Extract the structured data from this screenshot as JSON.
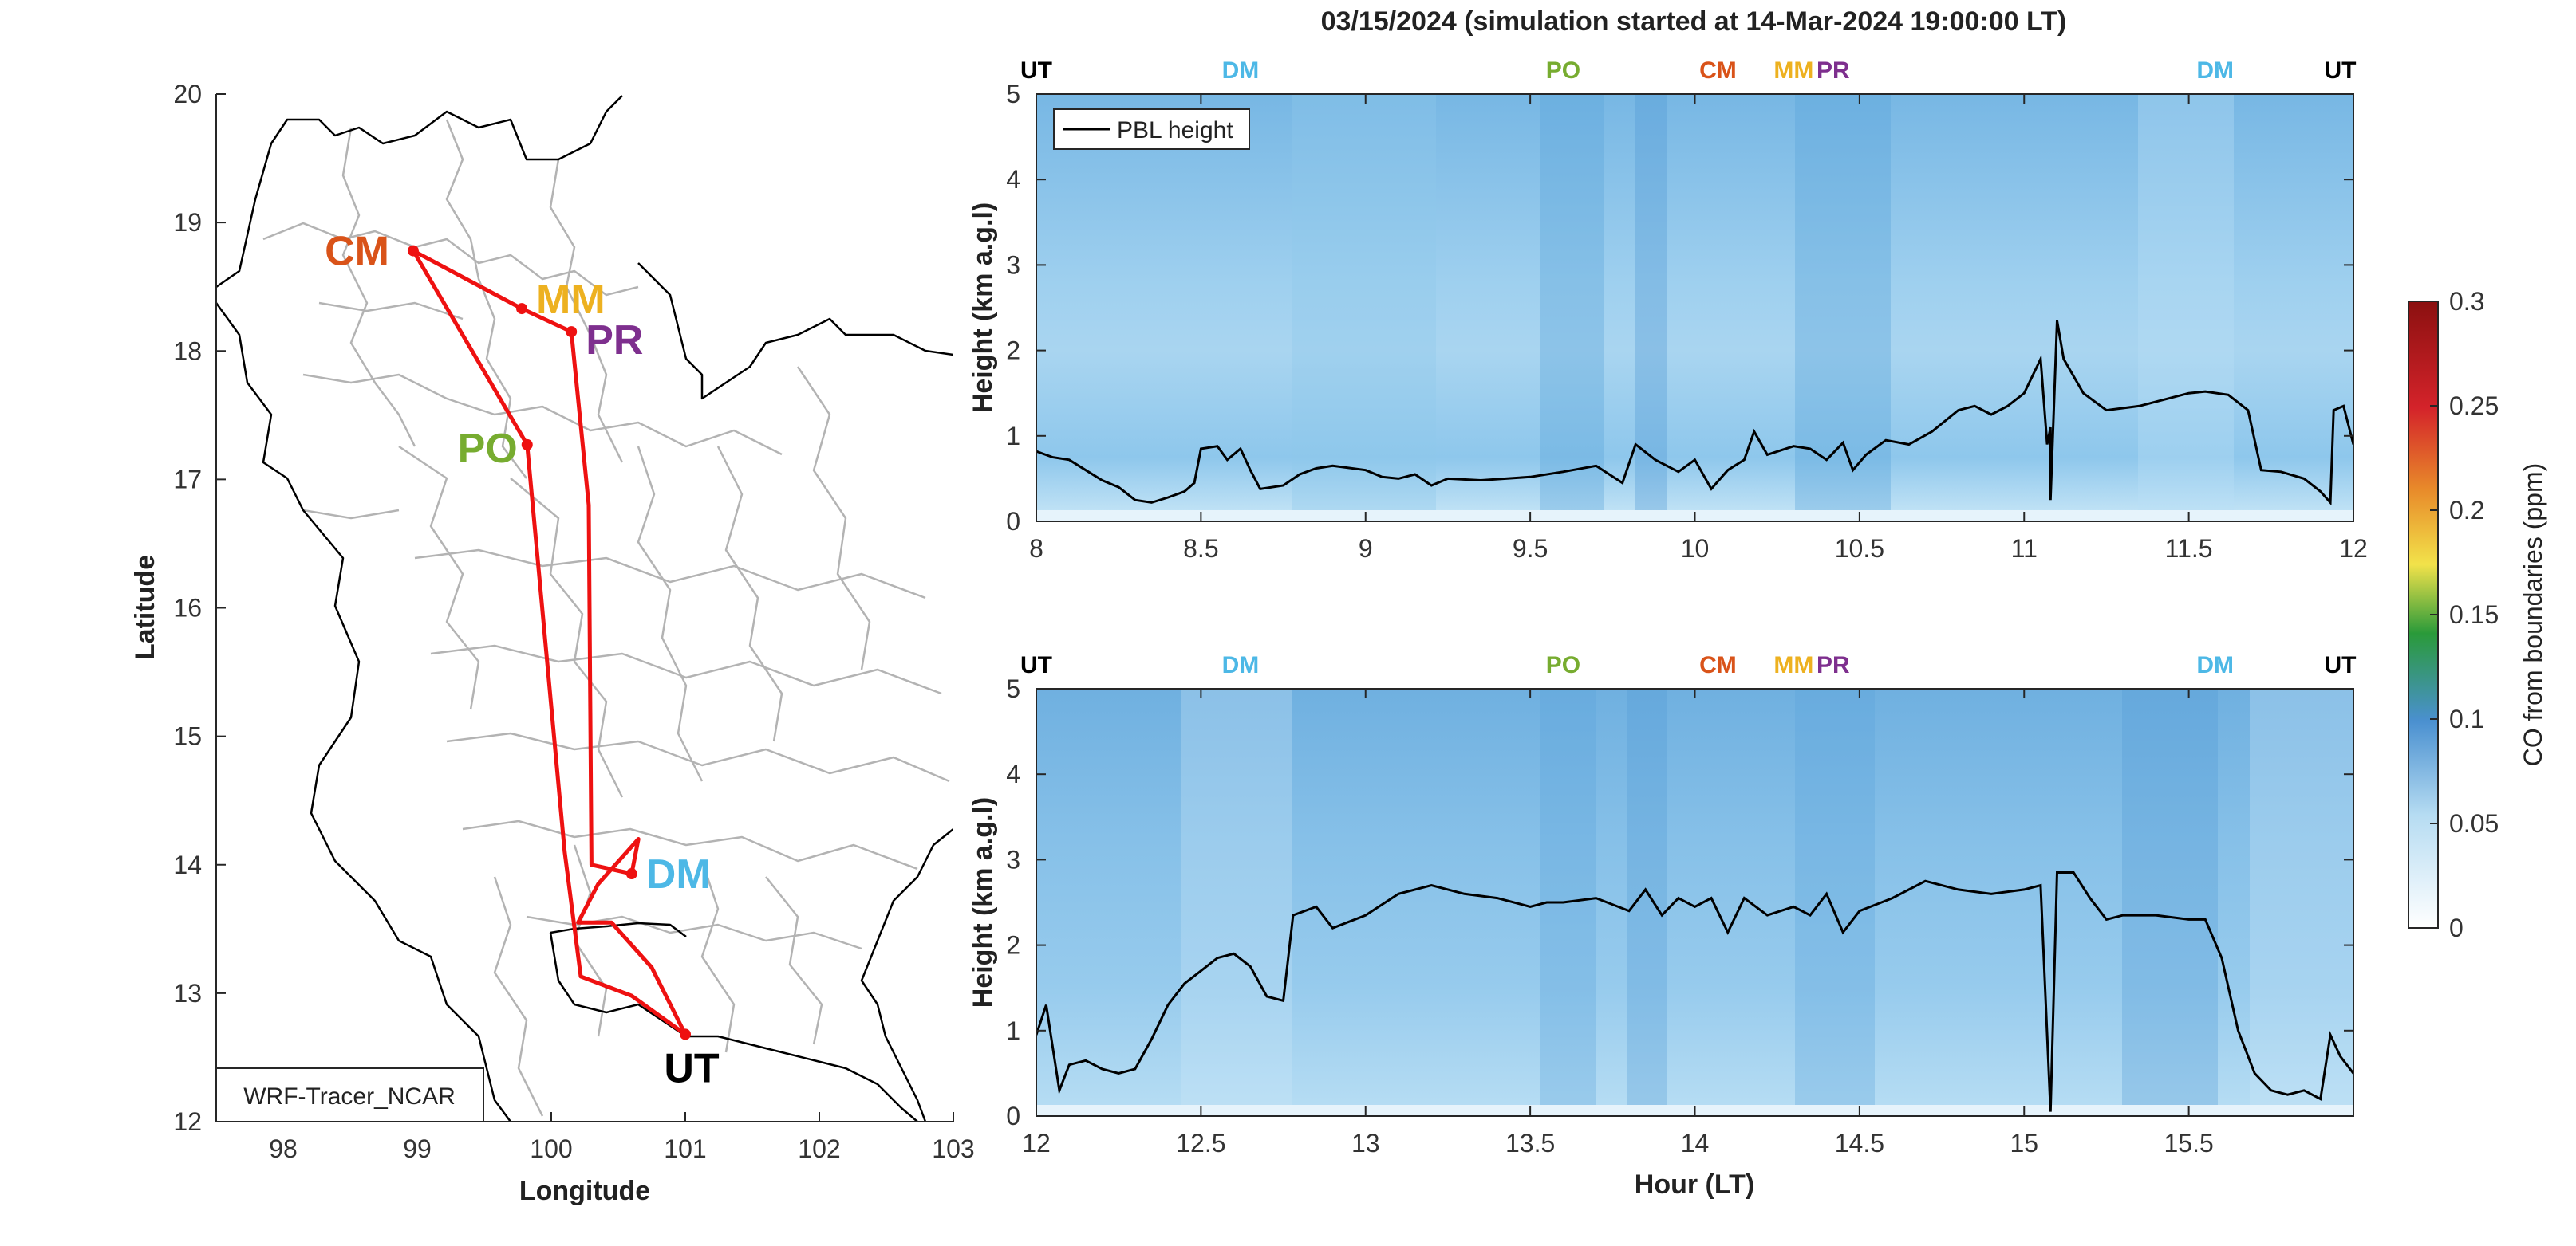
{
  "title": "03/15/2024 (simulation started at 14-Mar-2024 19:00:00 LT)",
  "colors": {
    "route": "#ee1111",
    "UT": "#000000",
    "DM": "#4db8e6",
    "PO": "#77ac30",
    "CM": "#d95319",
    "MM": "#edb120",
    "PR": "#7e2f8e",
    "boundary": "#b3b3b3",
    "field_low": "#c7e6f7",
    "field_high": "#6eafe0",
    "pbl": "#000000"
  },
  "chart_data": [
    {
      "type": "map",
      "xlabel": "Longitude",
      "ylabel": "Latitude",
      "xlim": [
        97.5,
        103
      ],
      "ylim": [
        12,
        20
      ],
      "xticks": [
        98,
        99,
        100,
        101,
        102,
        103
      ],
      "yticks": [
        12,
        13,
        14,
        15,
        16,
        17,
        18,
        19,
        20
      ],
      "annotation": "WRF-Tracer_NCAR",
      "stations": [
        {
          "name": "CM",
          "lon": 98.97,
          "lat": 18.78
        },
        {
          "name": "MM",
          "lon": 99.78,
          "lat": 18.33
        },
        {
          "name": "PR",
          "lon": 100.15,
          "lat": 18.15
        },
        {
          "name": "PO",
          "lon": 99.82,
          "lat": 17.27
        },
        {
          "name": "DM",
          "lon": 100.6,
          "lat": 13.93
        },
        {
          "name": "UT",
          "lon": 101.0,
          "lat": 12.68
        }
      ],
      "route": [
        [
          101.0,
          12.68
        ],
        [
          100.6,
          12.98
        ],
        [
          100.22,
          13.13
        ],
        [
          100.1,
          14.1
        ],
        [
          99.82,
          17.27
        ],
        [
          98.97,
          18.78
        ],
        [
          99.78,
          18.33
        ],
        [
          100.15,
          18.15
        ],
        [
          100.28,
          16.8
        ],
        [
          100.3,
          14.0
        ],
        [
          100.6,
          13.93
        ],
        [
          100.65,
          14.2
        ],
        [
          100.35,
          13.85
        ],
        [
          100.2,
          13.55
        ],
        [
          100.45,
          13.55
        ],
        [
          100.75,
          13.2
        ],
        [
          101.0,
          12.68
        ]
      ]
    },
    {
      "type": "heatmap",
      "series_name": "PBL height",
      "legend": "PBL height",
      "legend_position": "top-left",
      "ylabel": "Height (km a.g.l)",
      "xlabel": "",
      "xlim": [
        8,
        12
      ],
      "ylim": [
        0,
        5
      ],
      "xticks": [
        "8",
        "8.5",
        "9",
        "9.5",
        "10",
        "10.5",
        "11",
        "11.5",
        "12"
      ],
      "yticks": [
        "0",
        "1",
        "2",
        "3",
        "4",
        "5"
      ],
      "top_markers": [
        {
          "label": "UT",
          "x": 8.0,
          "color": "UT"
        },
        {
          "label": "DM",
          "x": 8.62,
          "color": "DM"
        },
        {
          "label": "PO",
          "x": 9.6,
          "color": "PO"
        },
        {
          "label": "CM",
          "x": 10.07,
          "color": "CM"
        },
        {
          "label": "MM",
          "x": 10.3,
          "color": "MM"
        },
        {
          "label": "PR",
          "x": 10.42,
          "color": "PR"
        },
        {
          "label": "DM",
          "x": 11.58,
          "color": "DM"
        },
        {
          "label": "UT",
          "x": 11.96,
          "color": "UT"
        }
      ],
      "pbl_points": [
        [
          8.0,
          0.82
        ],
        [
          8.05,
          0.75
        ],
        [
          8.1,
          0.72
        ],
        [
          8.15,
          0.6
        ],
        [
          8.2,
          0.48
        ],
        [
          8.25,
          0.4
        ],
        [
          8.3,
          0.25
        ],
        [
          8.35,
          0.22
        ],
        [
          8.4,
          0.28
        ],
        [
          8.45,
          0.35
        ],
        [
          8.48,
          0.45
        ],
        [
          8.5,
          0.85
        ],
        [
          8.55,
          0.88
        ],
        [
          8.58,
          0.72
        ],
        [
          8.62,
          0.85
        ],
        [
          8.65,
          0.6
        ],
        [
          8.68,
          0.38
        ],
        [
          8.75,
          0.42
        ],
        [
          8.8,
          0.55
        ],
        [
          8.85,
          0.62
        ],
        [
          8.9,
          0.65
        ],
        [
          9.0,
          0.6
        ],
        [
          9.05,
          0.52
        ],
        [
          9.1,
          0.5
        ],
        [
          9.15,
          0.55
        ],
        [
          9.2,
          0.42
        ],
        [
          9.25,
          0.5
        ],
        [
          9.35,
          0.48
        ],
        [
          9.5,
          0.52
        ],
        [
          9.6,
          0.58
        ],
        [
          9.7,
          0.65
        ],
        [
          9.78,
          0.45
        ],
        [
          9.82,
          0.9
        ],
        [
          9.88,
          0.72
        ],
        [
          9.95,
          0.58
        ],
        [
          10.0,
          0.72
        ],
        [
          10.05,
          0.38
        ],
        [
          10.1,
          0.6
        ],
        [
          10.15,
          0.72
        ],
        [
          10.18,
          1.05
        ],
        [
          10.22,
          0.78
        ],
        [
          10.3,
          0.88
        ],
        [
          10.35,
          0.85
        ],
        [
          10.4,
          0.72
        ],
        [
          10.45,
          0.92
        ],
        [
          10.48,
          0.6
        ],
        [
          10.52,
          0.78
        ],
        [
          10.58,
          0.95
        ],
        [
          10.65,
          0.9
        ],
        [
          10.72,
          1.05
        ],
        [
          10.8,
          1.3
        ],
        [
          10.85,
          1.35
        ],
        [
          10.9,
          1.25
        ],
        [
          10.95,
          1.35
        ],
        [
          11.0,
          1.5
        ],
        [
          11.05,
          1.9
        ],
        [
          11.07,
          0.9
        ],
        [
          11.08,
          1.1
        ],
        [
          11.1,
          2.35
        ],
        [
          11.12,
          1.9
        ],
        [
          11.18,
          1.5
        ],
        [
          11.25,
          1.3
        ],
        [
          11.35,
          1.35
        ],
        [
          11.45,
          1.45
        ],
        [
          11.5,
          1.5
        ],
        [
          11.55,
          1.52
        ],
        [
          11.62,
          1.48
        ],
        [
          11.68,
          1.3
        ],
        [
          11.72,
          0.6
        ],
        [
          11.78,
          0.58
        ],
        [
          11.85,
          0.5
        ],
        [
          11.9,
          0.35
        ],
        [
          11.94,
          1.3
        ],
        [
          11.97,
          1.35
        ],
        [
          12.0,
          0.9
        ]
      ],
      "pbl_dips": [
        [
          11.08,
          0.25
        ],
        [
          11.93,
          0.22
        ]
      ]
    },
    {
      "type": "heatmap",
      "series_name": "PBL height",
      "ylabel": "Height (km a.g.l)",
      "xlabel": "Hour (LT)",
      "xlim": [
        12,
        16
      ],
      "ylim": [
        0,
        5
      ],
      "xticks": [
        "12",
        "12.5",
        "13",
        "13.5",
        "14",
        "14.5",
        "15",
        "15.5"
      ],
      "yticks": [
        "0",
        "1",
        "2",
        "3",
        "4",
        "5"
      ],
      "top_markers": [
        {
          "label": "UT",
          "x": 12.0,
          "color": "UT"
        },
        {
          "label": "DM",
          "x": 12.62,
          "color": "DM"
        },
        {
          "label": "PO",
          "x": 13.6,
          "color": "PO"
        },
        {
          "label": "CM",
          "x": 14.07,
          "color": "CM"
        },
        {
          "label": "MM",
          "x": 14.3,
          "color": "MM"
        },
        {
          "label": "PR",
          "x": 14.42,
          "color": "PR"
        },
        {
          "label": "DM",
          "x": 15.58,
          "color": "DM"
        },
        {
          "label": "UT",
          "x": 15.96,
          "color": "UT"
        }
      ],
      "pbl_points": [
        [
          12.0,
          0.95
        ],
        [
          12.03,
          1.3
        ],
        [
          12.07,
          0.3
        ],
        [
          12.1,
          0.6
        ],
        [
          12.15,
          0.65
        ],
        [
          12.2,
          0.55
        ],
        [
          12.25,
          0.5
        ],
        [
          12.3,
          0.55
        ],
        [
          12.35,
          0.9
        ],
        [
          12.4,
          1.3
        ],
        [
          12.45,
          1.55
        ],
        [
          12.5,
          1.7
        ],
        [
          12.55,
          1.85
        ],
        [
          12.6,
          1.9
        ],
        [
          12.65,
          1.75
        ],
        [
          12.7,
          1.4
        ],
        [
          12.75,
          1.35
        ],
        [
          12.78,
          2.35
        ],
        [
          12.85,
          2.45
        ],
        [
          12.9,
          2.2
        ],
        [
          13.0,
          2.35
        ],
        [
          13.1,
          2.6
        ],
        [
          13.2,
          2.7
        ],
        [
          13.3,
          2.6
        ],
        [
          13.4,
          2.55
        ],
        [
          13.5,
          2.45
        ],
        [
          13.55,
          2.5
        ],
        [
          13.6,
          2.5
        ],
        [
          13.7,
          2.55
        ],
        [
          13.8,
          2.4
        ],
        [
          13.85,
          2.65
        ],
        [
          13.9,
          2.35
        ],
        [
          13.95,
          2.55
        ],
        [
          14.0,
          2.45
        ],
        [
          14.05,
          2.55
        ],
        [
          14.1,
          2.15
        ],
        [
          14.15,
          2.55
        ],
        [
          14.22,
          2.35
        ],
        [
          14.3,
          2.45
        ],
        [
          14.35,
          2.35
        ],
        [
          14.4,
          2.6
        ],
        [
          14.45,
          2.15
        ],
        [
          14.5,
          2.4
        ],
        [
          14.6,
          2.55
        ],
        [
          14.7,
          2.75
        ],
        [
          14.8,
          2.65
        ],
        [
          14.9,
          2.6
        ],
        [
          15.0,
          2.65
        ],
        [
          15.05,
          2.7
        ],
        [
          15.08,
          0.05
        ],
        [
          15.1,
          2.85
        ],
        [
          15.15,
          2.85
        ],
        [
          15.2,
          2.55
        ],
        [
          15.25,
          2.3
        ],
        [
          15.3,
          2.35
        ],
        [
          15.4,
          2.35
        ],
        [
          15.5,
          2.3
        ],
        [
          15.55,
          2.3
        ],
        [
          15.6,
          1.85
        ],
        [
          15.65,
          1.0
        ],
        [
          15.7,
          0.5
        ],
        [
          15.75,
          0.3
        ],
        [
          15.8,
          0.25
        ],
        [
          15.85,
          0.3
        ],
        [
          15.9,
          0.2
        ],
        [
          15.93,
          0.95
        ],
        [
          15.96,
          0.7
        ],
        [
          16.0,
          0.5
        ]
      ]
    },
    {
      "type": "colorbar",
      "label": "CO from boundaries (ppm)",
      "ticks": [
        "0",
        "0.05",
        "0.1",
        "0.15",
        "0.2",
        "0.25",
        "0.3"
      ],
      "range": [
        0,
        0.3
      ],
      "stops": [
        "#ffffff",
        "#4a90d0",
        "#2a9a3a",
        "#f2e24a",
        "#e88a2a",
        "#d4232a",
        "#8b1010"
      ]
    }
  ]
}
